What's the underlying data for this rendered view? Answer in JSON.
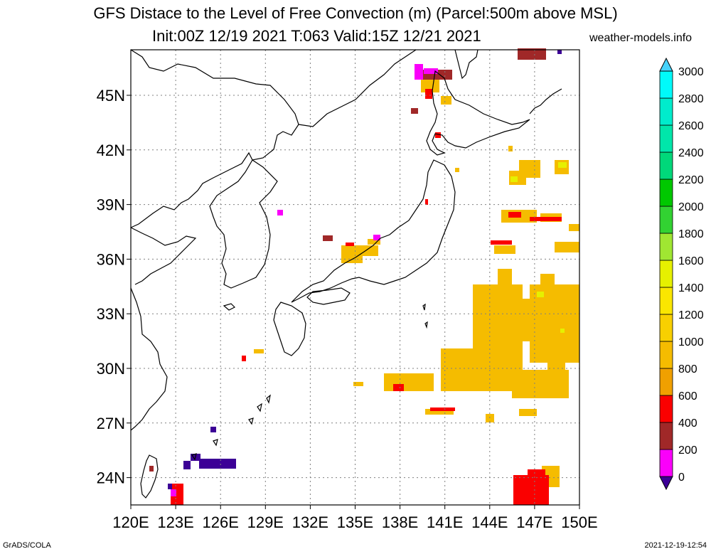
{
  "header": {
    "title_line1": "GFS Distace to the Level of Free Convection (m) (Parcel:500m above MSL)",
    "title_line2": "Init:00Z 12/19 2021 T:063 Valid:15Z 12/21 2021",
    "site": "weather-models.info"
  },
  "footer": {
    "left": "GrADS/COLA",
    "right": "2021-12-19-12:54"
  },
  "map": {
    "lon_labels": [
      "120E",
      "123E",
      "126E",
      "129E",
      "132E",
      "135E",
      "138E",
      "141E",
      "144E",
      "147E",
      "150E"
    ],
    "lat_labels": [
      "24N",
      "27N",
      "30N",
      "33N",
      "36N",
      "39N",
      "42N",
      "45N"
    ],
    "lat_values": [
      24,
      27,
      30,
      33,
      36,
      39,
      42,
      45
    ],
    "lon_range": [
      120,
      150
    ],
    "lat_range": [
      22.5,
      47.5
    ],
    "grid": "dotted",
    "coastline_color": "#000000"
  },
  "colorbar": {
    "levels": [
      "0",
      "200",
      "400",
      "600",
      "800",
      "1000",
      "1200",
      "1400",
      "1600",
      "1800",
      "2000",
      "2200",
      "2400",
      "2600",
      "2800",
      "3000"
    ],
    "colors": [
      "#3c0096",
      "#fa00fa",
      "#a02828",
      "#fa0000",
      "#f0a000",
      "#f5bc00",
      "#f8d000",
      "#fae600",
      "#e6f000",
      "#a0e632",
      "#32d232",
      "#00c800",
      "#00d87a",
      "#00e6aa",
      "#00eccc",
      "#00fafa",
      "#46d2fa"
    ]
  }
}
